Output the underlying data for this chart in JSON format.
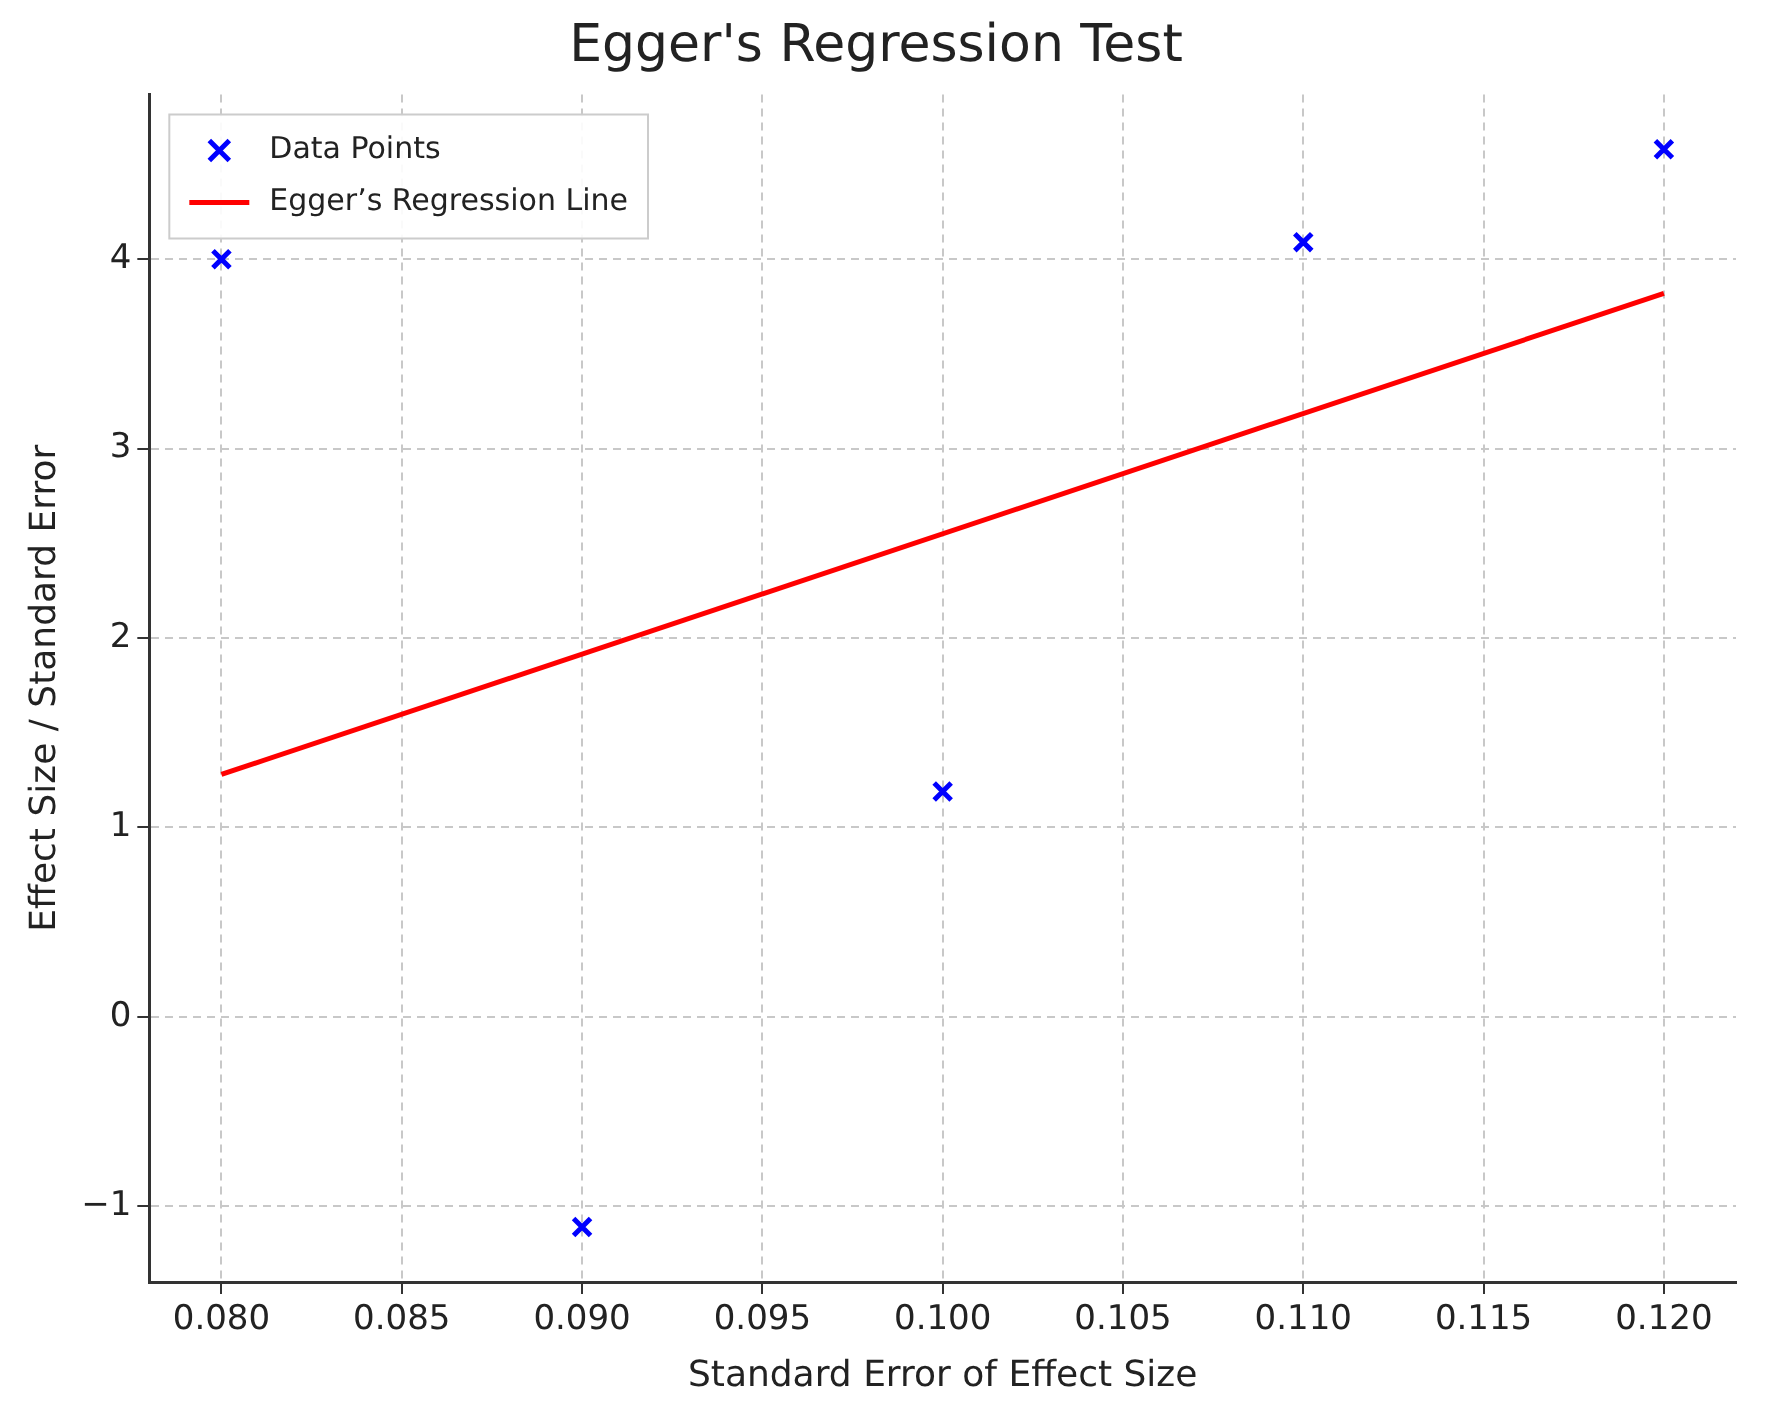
{
  "chart_data": {
    "type": "scatter",
    "title": "Egger's Regression Test",
    "xlabel": "Standard Error of Effect Size",
    "ylabel": "Effect Size / Standard Error",
    "x": [
      0.08,
      0.09,
      0.1,
      0.11,
      0.12
    ],
    "series": [
      {
        "name": "Data Points",
        "color": "#0000ff",
        "marker": "cross",
        "values": [
          4.0,
          -1.11,
          1.19,
          4.09,
          4.58
        ]
      },
      {
        "name": "Egger’s Regression Line",
        "type": "line",
        "color": "#ff0000",
        "marker": "none",
        "x": [
          0.08,
          0.12
        ],
        "values": [
          1.28,
          3.82
        ]
      }
    ],
    "xlim": [
      0.078,
      0.122
    ],
    "ylim": [
      -1.4,
      4.87
    ],
    "xticks": [
      {
        "value": 0.08,
        "label": "0.080"
      },
      {
        "value": 0.085,
        "label": "0.085"
      },
      {
        "value": 0.09,
        "label": "0.090"
      },
      {
        "value": 0.095,
        "label": "0.095"
      },
      {
        "value": 0.1,
        "label": "0.100"
      },
      {
        "value": 0.105,
        "label": "0.105"
      },
      {
        "value": 0.11,
        "label": "0.110"
      },
      {
        "value": 0.115,
        "label": "0.115"
      },
      {
        "value": 0.12,
        "label": "0.120"
      }
    ],
    "yticks": [
      {
        "value": -1,
        "label": "−1"
      },
      0,
      1,
      2,
      3,
      4
    ],
    "grid": true,
    "legend": "top left"
  }
}
